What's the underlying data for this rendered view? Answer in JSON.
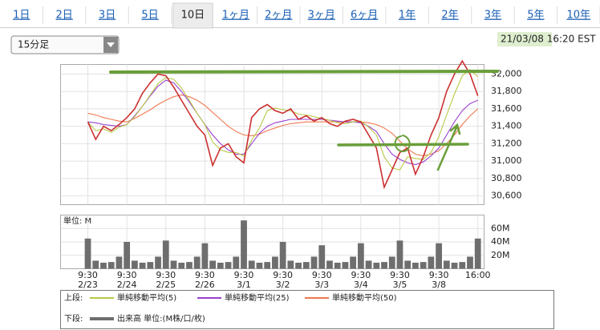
{
  "chart_data": {
    "type": "line",
    "tabs": [
      "1日",
      "2日",
      "3日",
      "5日",
      "10日",
      "1ヶ月",
      "2ヶ月",
      "3ヶ月",
      "6ヶ月",
      "1年",
      "2年",
      "3年",
      "5年",
      "10年"
    ],
    "selected_tab": 4,
    "interval": "15分足",
    "timestamp": "21/03/08 16:20 EST",
    "x": [
      0,
      0.2,
      0.4,
      0.6,
      0.8,
      1,
      1.2,
      1.4,
      1.6,
      1.8,
      2,
      2.2,
      2.4,
      2.6,
      2.8,
      3,
      3.2,
      3.4,
      3.6,
      3.8,
      4,
      4.2,
      4.4,
      4.6,
      4.8,
      5,
      5.2,
      5.4,
      5.6,
      5.8,
      6,
      6.2,
      6.4,
      6.6,
      6.8,
      7,
      7.2,
      7.4,
      7.6,
      7.8,
      8,
      8.2,
      8.4,
      8.6,
      8.8,
      9,
      9.2,
      9.4,
      9.6,
      9.8,
      10
    ],
    "xlim": [
      -0.7,
      10.16
    ],
    "xticks": [
      {
        "value": 0,
        "label": "9:30",
        "date": "2/23"
      },
      {
        "value": 1,
        "label": "9:30",
        "date": "2/24"
      },
      {
        "value": 2,
        "label": "9:30",
        "date": "2/25"
      },
      {
        "value": 3,
        "label": "9:30",
        "date": "2/26"
      },
      {
        "value": 4,
        "label": "9:30",
        "date": "3/1"
      },
      {
        "value": 5,
        "label": "9:30",
        "date": "3/2"
      },
      {
        "value": 6,
        "label": "9:30",
        "date": "3/3"
      },
      {
        "value": 7,
        "label": "9:30",
        "date": "3/4"
      },
      {
        "value": 8,
        "label": "9:30",
        "date": "3/5"
      },
      {
        "value": 9,
        "label": "9:30",
        "date": "3/8"
      },
      {
        "value": 10,
        "label": "16:00"
      }
    ],
    "ylim": [
      30500,
      32110
    ],
    "yticks": [
      {
        "value": 30600,
        "label": "30,600"
      },
      {
        "value": 30800,
        "label": "30,800"
      },
      {
        "value": 31000,
        "label": "31,000"
      },
      {
        "value": 31200,
        "label": "31,200"
      },
      {
        "value": 31400,
        "label": "31,400"
      },
      {
        "value": 31600,
        "label": "31,600"
      },
      {
        "value": 31800,
        "label": "31,800"
      },
      {
        "value": 32000,
        "label": "32,000"
      }
    ],
    "grid": true,
    "series": [
      {
        "color": "#cc3030",
        "values": [
          31450,
          31250,
          31400,
          31350,
          31420,
          31500,
          31600,
          31780,
          31900,
          32000,
          31980,
          31850,
          31700,
          31550,
          31400,
          31300,
          30950,
          31150,
          31200,
          31050,
          30980,
          31500,
          31600,
          31650,
          31580,
          31550,
          31600,
          31480,
          31520,
          31460,
          31500,
          31430,
          31400,
          31460,
          31480,
          31450,
          31300,
          31150,
          30700,
          30900,
          31100,
          31150,
          30850,
          31050,
          31300,
          31500,
          31800,
          32000,
          32150,
          32000,
          31750
        ]
      },
      {
        "name": "単純移動平均(5)",
        "color": "#b8c848",
        "values": [
          31450,
          31350,
          31370,
          31330,
          31390,
          31420,
          31510,
          31630,
          31760,
          31890,
          31960,
          31940,
          31840,
          31700,
          31550,
          31420,
          31220,
          31130,
          31100,
          31100,
          31060,
          31240,
          31380,
          31580,
          31610,
          31590,
          31580,
          31540,
          31530,
          31510,
          31490,
          31470,
          31440,
          31430,
          31450,
          31460,
          31390,
          31300,
          31050,
          30920,
          30900,
          31050,
          31030,
          31020,
          31100,
          31280,
          31530,
          31770,
          31980,
          32050,
          31970
        ]
      },
      {
        "name": "単純移動平均(25)",
        "color": "#9a40d0",
        "values": [
          31450,
          31440,
          31420,
          31410,
          31400,
          31420,
          31520,
          31630,
          31750,
          31860,
          31930,
          31900,
          31800,
          31680,
          31550,
          31420,
          31300,
          31200,
          31130,
          31080,
          31080,
          31200,
          31320,
          31400,
          31440,
          31460,
          31480,
          31480,
          31480,
          31480,
          31480,
          31470,
          31460,
          31450,
          31450,
          31440,
          31400,
          31340,
          31200,
          31080,
          31020,
          30980,
          30960,
          30990,
          31060,
          31150,
          31300,
          31450,
          31580,
          31660,
          31700
        ]
      },
      {
        "name": "単純移動平均(50)",
        "color": "#f07850",
        "values": [
          31550,
          31530,
          31500,
          31480,
          31460,
          31450,
          31490,
          31540,
          31590,
          31650,
          31700,
          31740,
          31760,
          31740,
          31700,
          31640,
          31560,
          31480,
          31400,
          31340,
          31300,
          31290,
          31310,
          31350,
          31380,
          31410,
          31430,
          31440,
          31450,
          31450,
          31450,
          31450,
          31450,
          31450,
          31450,
          31450,
          31440,
          31420,
          31380,
          31320,
          31230,
          31140,
          31080,
          31060,
          31080,
          31120,
          31200,
          31300,
          31420,
          31520,
          31600
        ]
      }
    ],
    "legend_upper_label": "上段:",
    "legend_lower_label": "下段:",
    "volume": {
      "type": "bar",
      "name": "出来高 単位:(M株/口/枚)",
      "unit_label": "単位: M",
      "color": "#6e6e6e",
      "values": [
        45,
        12,
        9,
        10,
        18,
        40,
        12,
        9,
        10,
        18,
        42,
        12,
        9,
        10,
        18,
        38,
        12,
        9,
        10,
        18,
        72,
        12,
        9,
        10,
        18,
        40,
        12,
        9,
        10,
        18,
        35,
        12,
        9,
        10,
        18,
        38,
        12,
        9,
        10,
        18,
        42,
        12,
        9,
        10,
        18,
        38,
        12,
        9,
        10,
        18,
        45
      ],
      "ylim": [
        0,
        80
      ],
      "yticks": [
        {
          "value": 20,
          "label": "20M"
        },
        {
          "value": 40,
          "label": "40M"
        },
        {
          "value": 60,
          "label": "60M"
        }
      ]
    }
  }
}
